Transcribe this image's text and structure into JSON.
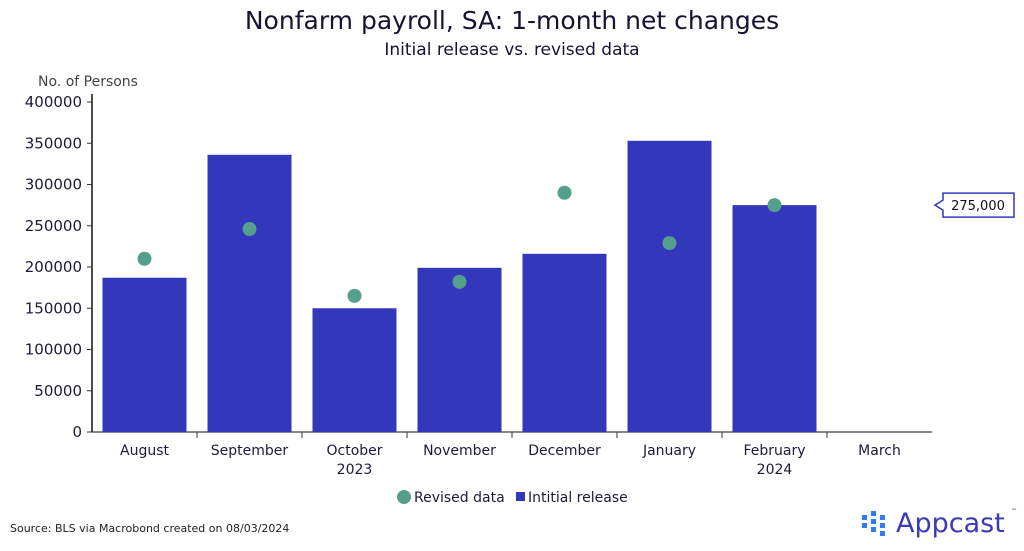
{
  "title": "Nonfarm payroll, SA: 1-month net changes",
  "subtitle": "Initial release vs. revised data",
  "source": "Source: BLS via Macrobond created on 08/03/2024",
  "logo": "Appcast",
  "logo_tm": "™",
  "chart_data": {
    "type": "bar",
    "title": "Nonfarm payroll, SA: 1-month net changes",
    "subtitle": "Initial release vs. revised data",
    "ylabel": "No. of Persons",
    "xlabel": "",
    "ylim": [
      0,
      400000
    ],
    "yticks": [
      "0",
      "50000",
      "100000",
      "150000",
      "200000",
      "250000",
      "300000",
      "350000",
      "400000"
    ],
    "categories": [
      "August",
      "September",
      "October",
      "November",
      "December",
      "January",
      "February",
      "March"
    ],
    "year_labels": [
      {
        "under": "October",
        "text": "2023"
      },
      {
        "under": "February",
        "text": "2024"
      }
    ],
    "series": [
      {
        "name": "Intitial release",
        "type": "bar",
        "color": "#3337bb",
        "values": [
          187000,
          336000,
          150000,
          199000,
          216000,
          353000,
          275000,
          null
        ]
      },
      {
        "name": "Revised data",
        "type": "scatter",
        "color": "#55a08c",
        "values": [
          210000,
          246000,
          165000,
          182000,
          290000,
          229000,
          275000,
          null
        ]
      }
    ],
    "legend_order": [
      "Revised data",
      "Intitial release"
    ],
    "legend_position": "bottom",
    "annotation": {
      "text": "275,000",
      "value": 275000
    },
    "grid": false
  }
}
